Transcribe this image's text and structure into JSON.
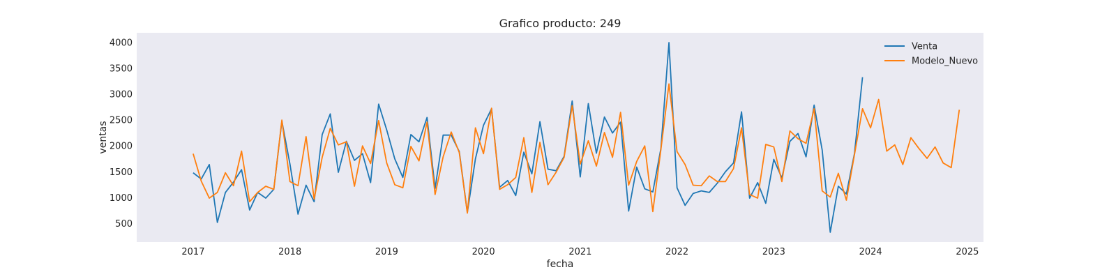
{
  "chart_data": {
    "type": "line",
    "title": "Grafico producto: 249",
    "xlabel": "fecha",
    "ylabel": "ventas",
    "x_ticks": [
      "2017",
      "2018",
      "2019",
      "2020",
      "2021",
      "2022",
      "2023",
      "2024",
      "2025"
    ],
    "y_ticks": [
      500,
      1000,
      1500,
      2000,
      2500,
      3000,
      3500,
      4000
    ],
    "xlim": [
      "2016-06",
      "2025-03"
    ],
    "ylim": [
      140,
      4190
    ],
    "grid": false,
    "legend_position": "top-right",
    "background": "#eaeaf2",
    "series": [
      {
        "name": "Venta",
        "color": "#1f77b4",
        "start": "2017-01",
        "values": [
          1480,
          1360,
          1640,
          520,
          1100,
          1300,
          1540,
          760,
          1100,
          990,
          1160,
          2480,
          1650,
          680,
          1240,
          920,
          2220,
          2620,
          1490,
          2090,
          1720,
          1850,
          1290,
          2810,
          2310,
          1750,
          1390,
          2220,
          2080,
          2550,
          1180,
          2210,
          2210,
          1890,
          710,
          1750,
          2400,
          2720,
          1200,
          1330,
          1040,
          1880,
          1460,
          2470,
          1550,
          1520,
          1800,
          2870,
          1400,
          2820,
          1860,
          2560,
          2250,
          2460,
          740,
          1590,
          1170,
          1110,
          1950,
          4000,
          1190,
          850,
          1080,
          1130,
          1100,
          1280,
          1500,
          1670,
          2660,
          990,
          1290,
          890,
          1740,
          1380,
          2090,
          2240,
          1790,
          2790,
          1920,
          330,
          1220,
          1070,
          1850,
          3330
        ]
      },
      {
        "name": "Modelo_Nuevo",
        "color": "#ff7f0e",
        "start": "2017-01",
        "values": [
          1850,
          1320,
          990,
          1100,
          1480,
          1230,
          1900,
          920,
          1100,
          1220,
          1160,
          2500,
          1310,
          1230,
          2180,
          970,
          1780,
          2340,
          2020,
          2080,
          1220,
          2000,
          1660,
          2490,
          1670,
          1250,
          1190,
          1990,
          1710,
          2460,
          1060,
          1790,
          2270,
          1870,
          700,
          2350,
          1850,
          2730,
          1160,
          1250,
          1390,
          2160,
          1100,
          2070,
          1250,
          1490,
          1780,
          2780,
          1650,
          2100,
          1610,
          2260,
          1780,
          2650,
          1240,
          1700,
          2000,
          730,
          1930,
          3200,
          1890,
          1640,
          1240,
          1230,
          1420,
          1310,
          1310,
          1560,
          2350,
          1060,
          990,
          2030,
          1980,
          1310,
          2290,
          2140,
          2050,
          2720,
          1130,
          1010,
          1470,
          950,
          1830,
          2720,
          2350,
          2900,
          1900,
          2020,
          1640,
          2160,
          1950,
          1760,
          1980,
          1670,
          1580,
          2700
        ]
      }
    ]
  }
}
